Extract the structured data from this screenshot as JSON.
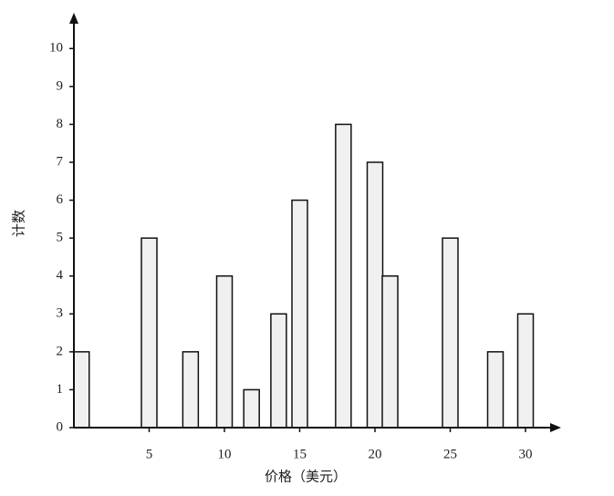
{
  "chart_data": {
    "type": "bar",
    "x": [
      0.5,
      5,
      7.75,
      10,
      11.8,
      13.6,
      15,
      17.9,
      20,
      21,
      25,
      28,
      30
    ],
    "values": [
      2,
      5,
      2,
      4,
      1,
      3,
      6,
      8,
      7,
      4,
      5,
      2,
      3
    ],
    "color": "#f0f0f0",
    "xlim": [
      0,
      32
    ],
    "ylim": [
      0,
      10.8
    ],
    "xticks": [
      5,
      10,
      15,
      20,
      25,
      30
    ],
    "yticks": [
      0,
      1,
      2,
      3,
      4,
      5,
      6,
      7,
      8,
      9,
      10
    ],
    "x_label": "价格（美元）",
    "y_label": "计数"
  }
}
